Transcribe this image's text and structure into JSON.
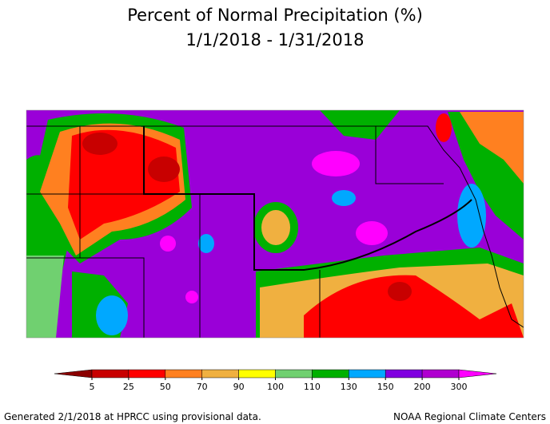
{
  "title": "Percent of Normal Precipitation (%)",
  "subtitle": "1/1/2018 - 1/31/2018",
  "legend": {
    "ticks": [
      5,
      25,
      50,
      70,
      90,
      100,
      110,
      130,
      150,
      200,
      300
    ],
    "colors": [
      "#8b0000",
      "#c80000",
      "#ff0000",
      "#ff8020",
      "#f0b040",
      "#ffff00",
      "#70d070",
      "#00b000",
      "#00a8ff",
      "#8000e0",
      "#b000d0",
      "#ff00ff"
    ]
  },
  "footer": {
    "left": "Generated 2/1/2018 at HPRCC using provisional data.",
    "right": "NOAA Regional Climate Centers"
  }
}
